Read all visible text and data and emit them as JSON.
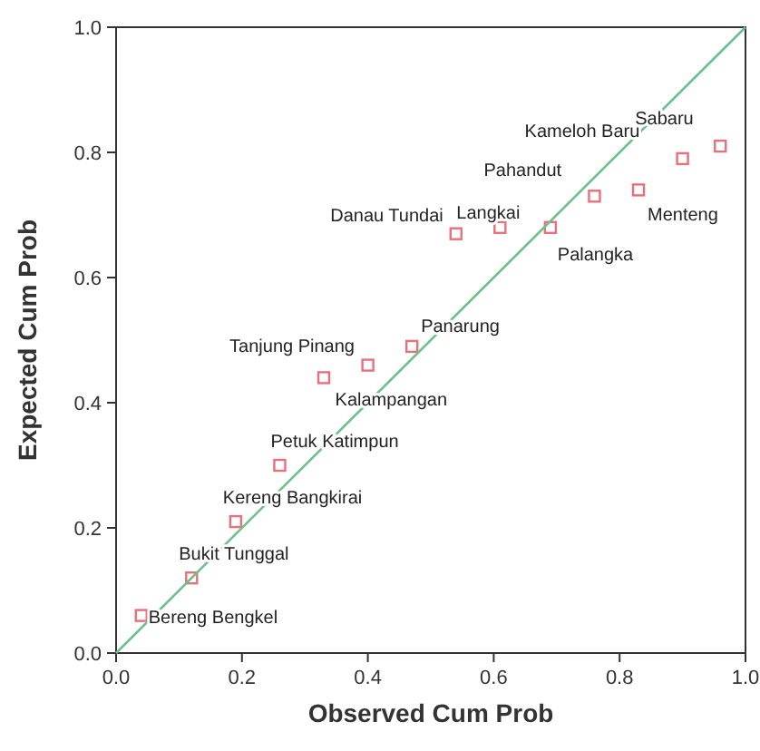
{
  "chart_data": {
    "type": "scatter",
    "xlabel": "Observed Cum Prob",
    "ylabel": "Expected Cum Prob",
    "x": [
      0.04,
      0.12,
      0.19,
      0.26,
      0.33,
      0.4,
      0.47,
      0.54,
      0.61,
      0.69,
      0.76,
      0.83,
      0.9,
      0.96
    ],
    "series": [
      {
        "color": "#e8707a",
        "values": [
          0.06,
          0.12,
          0.21,
          0.3,
          0.44,
          0.46,
          0.49,
          0.67,
          0.68,
          0.68,
          0.73,
          0.74,
          0.79,
          0.81
        ]
      },
      {
        "type": "line",
        "marker": "none",
        "color": "#6cc08a",
        "x": [
          0,
          1
        ],
        "values": [
          0,
          1
        ]
      }
    ],
    "annotations": [
      {
        "text": "Bereng Bengkel",
        "x": 0.04,
        "y": 0.06
      },
      {
        "text": "Bukit Tunggal",
        "x": 0.12,
        "y": 0.12
      },
      {
        "text": "Kereng Bangkirai",
        "x": 0.19,
        "y": 0.21
      },
      {
        "text": "Petuk Katimpun",
        "x": 0.26,
        "y": 0.3
      },
      {
        "text": "Tanjung Pinang",
        "x": 0.33,
        "y": 0.44
      },
      {
        "text": "Kalampangan",
        "x": 0.4,
        "y": 0.46
      },
      {
        "text": "Panarung",
        "x": 0.47,
        "y": 0.49
      },
      {
        "text": "Danau Tundai",
        "x": 0.54,
        "y": 0.67
      },
      {
        "text": "Langkai",
        "x": 0.61,
        "y": 0.68
      },
      {
        "text": "Palangka",
        "x": 0.69,
        "y": 0.68
      },
      {
        "text": "Pahandut",
        "x": 0.76,
        "y": 0.73
      },
      {
        "text": "Menteng",
        "x": 0.83,
        "y": 0.74
      },
      {
        "text": "Kameloh Baru",
        "x": 0.9,
        "y": 0.79
      },
      {
        "text": "Sabaru",
        "x": 0.96,
        "y": 0.81
      }
    ],
    "xlim": [
      0,
      1
    ],
    "ylim": [
      0,
      1
    ],
    "xticks": [
      {
        "value": 0,
        "label": "0.0"
      },
      {
        "value": 0.2,
        "label": "0.2"
      },
      {
        "value": 0.4,
        "label": "0.4"
      },
      {
        "value": 0.6,
        "label": "0.6"
      },
      {
        "value": 0.8,
        "label": "0.8"
      },
      {
        "value": 1,
        "label": "1.0"
      }
    ],
    "yticks": [
      {
        "value": 0,
        "label": "0.0"
      },
      {
        "value": 0.2,
        "label": "0.2"
      },
      {
        "value": 0.4,
        "label": "0.4"
      },
      {
        "value": 0.6,
        "label": "0.6"
      },
      {
        "value": 0.8,
        "label": "0.8"
      },
      {
        "value": 1,
        "label": "1.0"
      }
    ],
    "grid": false,
    "marker": "square"
  }
}
